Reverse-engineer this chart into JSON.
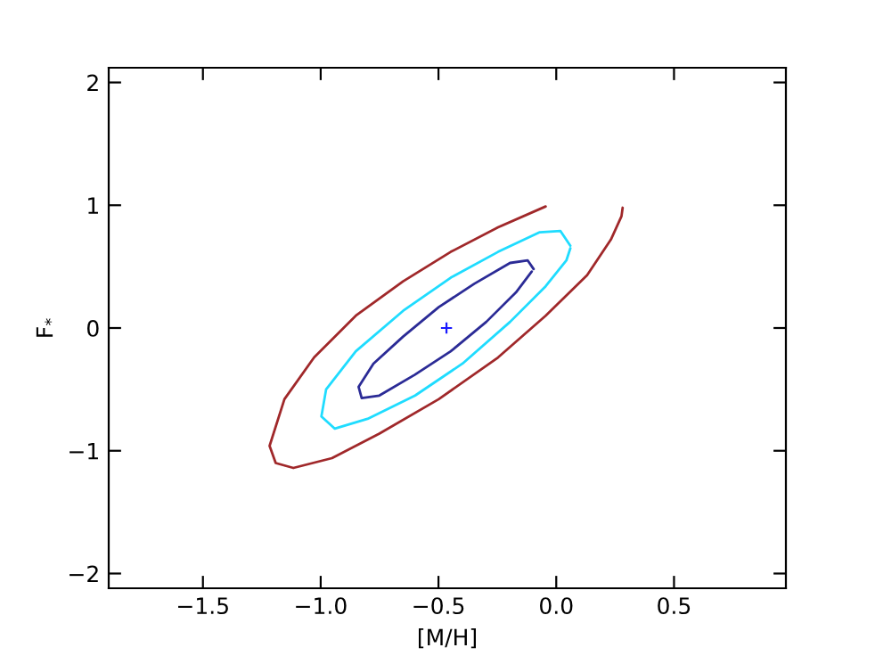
{
  "chart_data": {
    "type": "line",
    "xlabel": "[M/H]",
    "ylabel": "F$_{*}$",
    "xlim": [
      -1.9,
      0.975
    ],
    "ylim": [
      -2.12,
      2.12
    ],
    "xticks": [
      {
        "value": -1.5,
        "label": "−1.5"
      },
      {
        "value": -1.0,
        "label": "−1.0"
      },
      {
        "value": -0.5,
        "label": "−0.5"
      },
      {
        "value": 0.0,
        "label": "0.0"
      },
      {
        "value": 0.5,
        "label": "0.5"
      }
    ],
    "yticks": [
      {
        "value": -2,
        "label": "−2"
      },
      {
        "value": -1,
        "label": "−1"
      },
      {
        "value": 0,
        "label": "0"
      },
      {
        "value": 1,
        "label": "1"
      },
      {
        "value": 2,
        "label": "2"
      }
    ],
    "grid": false,
    "legend": false,
    "series": [
      {
        "color": "#2b2b96",
        "x": [
          -0.096,
          -0.121,
          -0.196,
          -0.348,
          -0.499,
          -0.65,
          -0.776,
          -0.839,
          -0.826,
          -0.751,
          -0.6,
          -0.448,
          -0.297,
          -0.171,
          -0.104
        ],
        "values": [
          0.48,
          0.55,
          0.53,
          0.36,
          0.17,
          -0.07,
          -0.29,
          -0.48,
          -0.57,
          -0.55,
          -0.38,
          -0.19,
          0.05,
          0.29,
          0.46
        ]
      },
      {
        "color": "#1fdcff",
        "x": [
          0.06,
          0.018,
          -0.07,
          -0.247,
          -0.448,
          -0.65,
          -0.851,
          -0.977,
          -0.997,
          -0.94,
          -0.801,
          -0.599,
          -0.398,
          -0.196,
          -0.045,
          0.043,
          0.06
        ],
        "values": [
          0.67,
          0.79,
          0.78,
          0.62,
          0.41,
          0.14,
          -0.19,
          -0.5,
          -0.72,
          -0.82,
          -0.74,
          -0.55,
          -0.29,
          0.05,
          0.34,
          0.55,
          0.65
        ]
      },
      {
        "color": "#a0282a",
        "x": [
          -0.045,
          -0.247,
          -0.448,
          -0.65,
          -0.851,
          -1.028,
          -1.154,
          -1.217,
          -1.191,
          -1.116,
          -0.952,
          -0.751,
          -0.499,
          -0.247,
          -0.045,
          0.131,
          0.232,
          0.277,
          0.282
        ],
        "values": [
          0.99,
          0.82,
          0.62,
          0.38,
          0.1,
          -0.24,
          -0.58,
          -0.96,
          -1.1,
          -1.14,
          -1.06,
          -0.86,
          -0.58,
          -0.24,
          0.1,
          0.43,
          0.72,
          0.91,
          0.98
        ]
      },
      {
        "type": "scatter",
        "marker": "cross",
        "color": "#1a1aff",
        "x": [
          -0.466
        ],
        "values": [
          0.0
        ]
      }
    ]
  }
}
